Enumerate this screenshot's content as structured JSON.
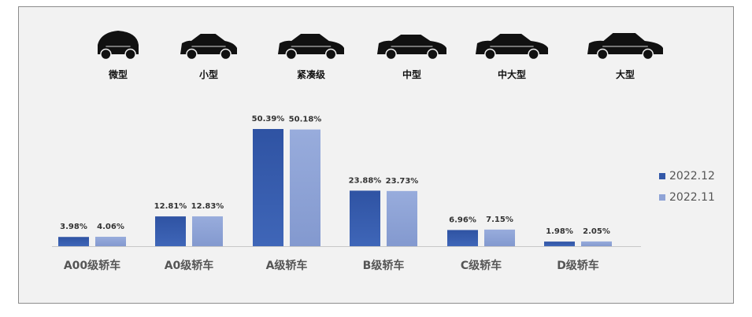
{
  "chart_data": {
    "type": "bar",
    "title": "",
    "xlabel": "",
    "ylabel": "",
    "ylim": [
      0,
      55
    ],
    "grid": false,
    "legend_position": "right",
    "categories": [
      "A00级轿车",
      "A0级轿车",
      "A级轿车",
      "B级轿车",
      "C级轿车",
      "D级轿车"
    ],
    "size_labels": [
      "微型",
      "小型",
      "紧凑级",
      "中型",
      "中大型",
      "大型"
    ],
    "series": [
      {
        "name": "2022.12",
        "color": "#3358a8",
        "values": [
          3.98,
          12.81,
          50.39,
          23.88,
          6.96,
          1.98
        ],
        "labels": [
          "3.98%",
          "12.81%",
          "50.39%",
          "23.88%",
          "6.96%",
          "1.98%"
        ]
      },
      {
        "name": "2022.11",
        "color": "#8fa3d6",
        "values": [
          4.06,
          12.83,
          50.18,
          23.73,
          7.15,
          2.05
        ],
        "labels": [
          "4.06%",
          "12.83%",
          "50.18%",
          "23.73%",
          "7.15%",
          "2.05%"
        ]
      }
    ]
  },
  "icons": [
    "microcar-icon",
    "hatchback-icon",
    "compact-sedan-icon",
    "midsize-sedan-icon",
    "large-sedan-icon",
    "fullsize-sedan-icon"
  ],
  "colors": {
    "background": "#f2f2f2",
    "axis": "#c8c8c8",
    "text": "#333333",
    "category_text": "#555555"
  }
}
